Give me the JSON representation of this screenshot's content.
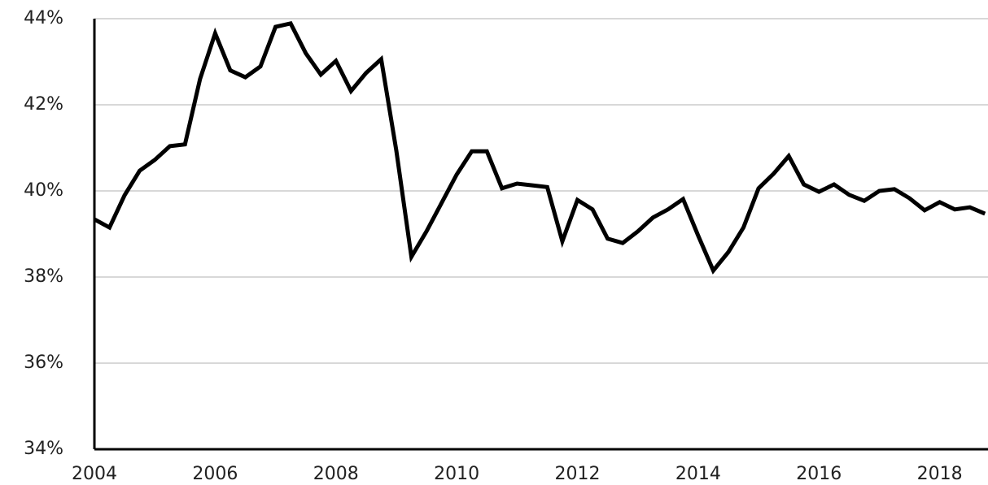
{
  "chart_data": {
    "type": "line",
    "x": [
      2004,
      2004.25,
      2004.5,
      2004.75,
      2005,
      2005.25,
      2005.5,
      2005.75,
      2006,
      2006.25,
      2006.5,
      2006.75,
      2007,
      2007.25,
      2007.5,
      2007.75,
      2008,
      2008.25,
      2008.5,
      2008.75,
      2009,
      2009.25,
      2009.5,
      2009.75,
      2010,
      2010.25,
      2010.5,
      2010.75,
      2011,
      2011.25,
      2011.5,
      2011.75,
      2012,
      2012.25,
      2012.5,
      2012.75,
      2013,
      2013.25,
      2013.5,
      2013.75,
      2014,
      2014.25,
      2014.5,
      2014.75,
      2015,
      2015.25,
      2015.5,
      2015.75,
      2016,
      2016.25,
      2016.5,
      2016.75,
      2017,
      2017.25,
      2017.5,
      2017.75,
      2018,
      2018.25,
      2018.5,
      2018.75
    ],
    "series": [
      {
        "color": "#000000",
        "values": [
          39.34,
          39.15,
          39.9,
          40.47,
          40.72,
          41.04,
          41.08,
          42.6,
          43.66,
          42.8,
          42.64,
          42.89,
          43.81,
          43.89,
          43.2,
          42.7,
          43.02,
          42.32,
          42.74,
          43.06,
          40.94,
          38.47,
          39.06,
          39.72,
          40.38,
          40.92,
          40.92,
          40.06,
          40.17,
          40.13,
          40.09,
          38.83,
          39.79,
          39.57,
          38.89,
          38.79,
          39.06,
          39.38,
          39.57,
          39.81,
          38.96,
          38.15,
          38.58,
          39.15,
          40.06,
          40.4,
          40.81,
          40.15,
          39.98,
          40.15,
          39.91,
          39.77,
          40.0,
          40.04,
          39.83,
          39.55,
          39.74,
          39.57,
          39.62,
          39.47
        ]
      }
    ],
    "xlim": [
      2004,
      2018.8
    ],
    "xticks": [
      2004,
      2006,
      2008,
      2010,
      2012,
      2014,
      2016,
      2018
    ],
    "ylim": [
      34,
      44
    ],
    "yticks": [
      {
        "value": 34,
        "label": "34%"
      },
      {
        "value": 36,
        "label": "36%"
      },
      {
        "value": 38,
        "label": "38%"
      },
      {
        "value": 40,
        "label": "40%"
      },
      {
        "value": 42,
        "label": "42%"
      },
      {
        "value": 44,
        "label": "44%"
      }
    ],
    "grid": true
  }
}
